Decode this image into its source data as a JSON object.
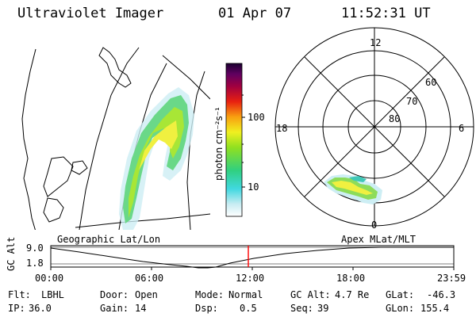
{
  "header": {
    "title": "Ultraviolet Imager",
    "date": "01 Apr 07",
    "time": "11:52:31 UT"
  },
  "colorbar": {
    "ticks": [
      "100",
      "10"
    ],
    "label": "photon cm⁻²s⁻¹"
  },
  "polar": {
    "mlt_labels": [
      "12",
      "18",
      "6",
      "0"
    ],
    "lat_labels": [
      "60",
      "70",
      "80"
    ]
  },
  "timeline": {
    "left_label": "Geographic Lat/Lon",
    "right_label": "Apex MLat/MLT",
    "axis_title": "GC Alt",
    "y_ticks": [
      "9.0",
      "1.8"
    ],
    "x_ticks": [
      "00:00",
      "06:00",
      "12:00",
      "18:00",
      "23:59"
    ],
    "marker_color": "#ff0000"
  },
  "info": {
    "row1": [
      {
        "key": "Flt:",
        "value": "LBHL"
      },
      {
        "key": "Door:",
        "value": "Open"
      },
      {
        "key": "Mode:",
        "value": "Normal"
      },
      {
        "key": "GC Alt:",
        "value": "4.7 Re"
      },
      {
        "key": "GLat:",
        "value": "-46.3"
      }
    ],
    "row2": [
      {
        "key": "IP:",
        "value": "36.0"
      },
      {
        "key": "Gain:",
        "value": "14"
      },
      {
        "key": "Dsp:",
        "value": "0.5"
      },
      {
        "key": "Seq:",
        "value": "39"
      },
      {
        "key": "GLon:",
        "value": "155.4"
      }
    ]
  }
}
